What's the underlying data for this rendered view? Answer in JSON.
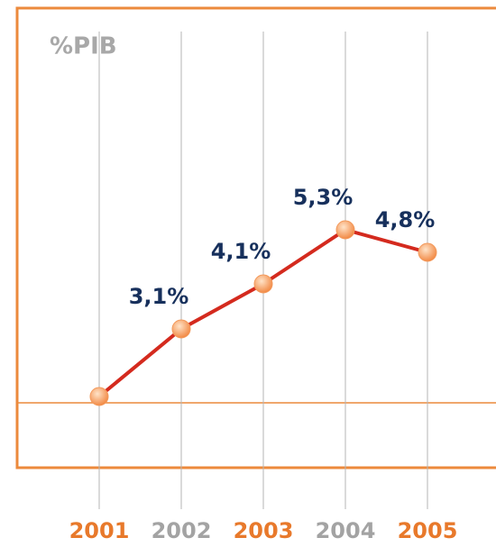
{
  "chart_data": {
    "type": "line",
    "y_label": "%PIB",
    "categories": [
      "2001",
      "2002",
      "2003",
      "2004",
      "2005"
    ],
    "series": [
      {
        "color": "#d42a1e",
        "values": [
          1.6,
          3.1,
          4.1,
          5.3,
          4.8
        ],
        "value_labels": [
          null,
          "3,1%",
          "4,1%",
          "5,3%",
          "4,8%"
        ]
      }
    ],
    "category_colors": [
      "#e8792b",
      "#a3a3a3",
      "#e8792b",
      "#a3a3a3",
      "#e8792b"
    ],
    "marker_color": "#f39a5c",
    "ylim": [
      0,
      10
    ]
  }
}
